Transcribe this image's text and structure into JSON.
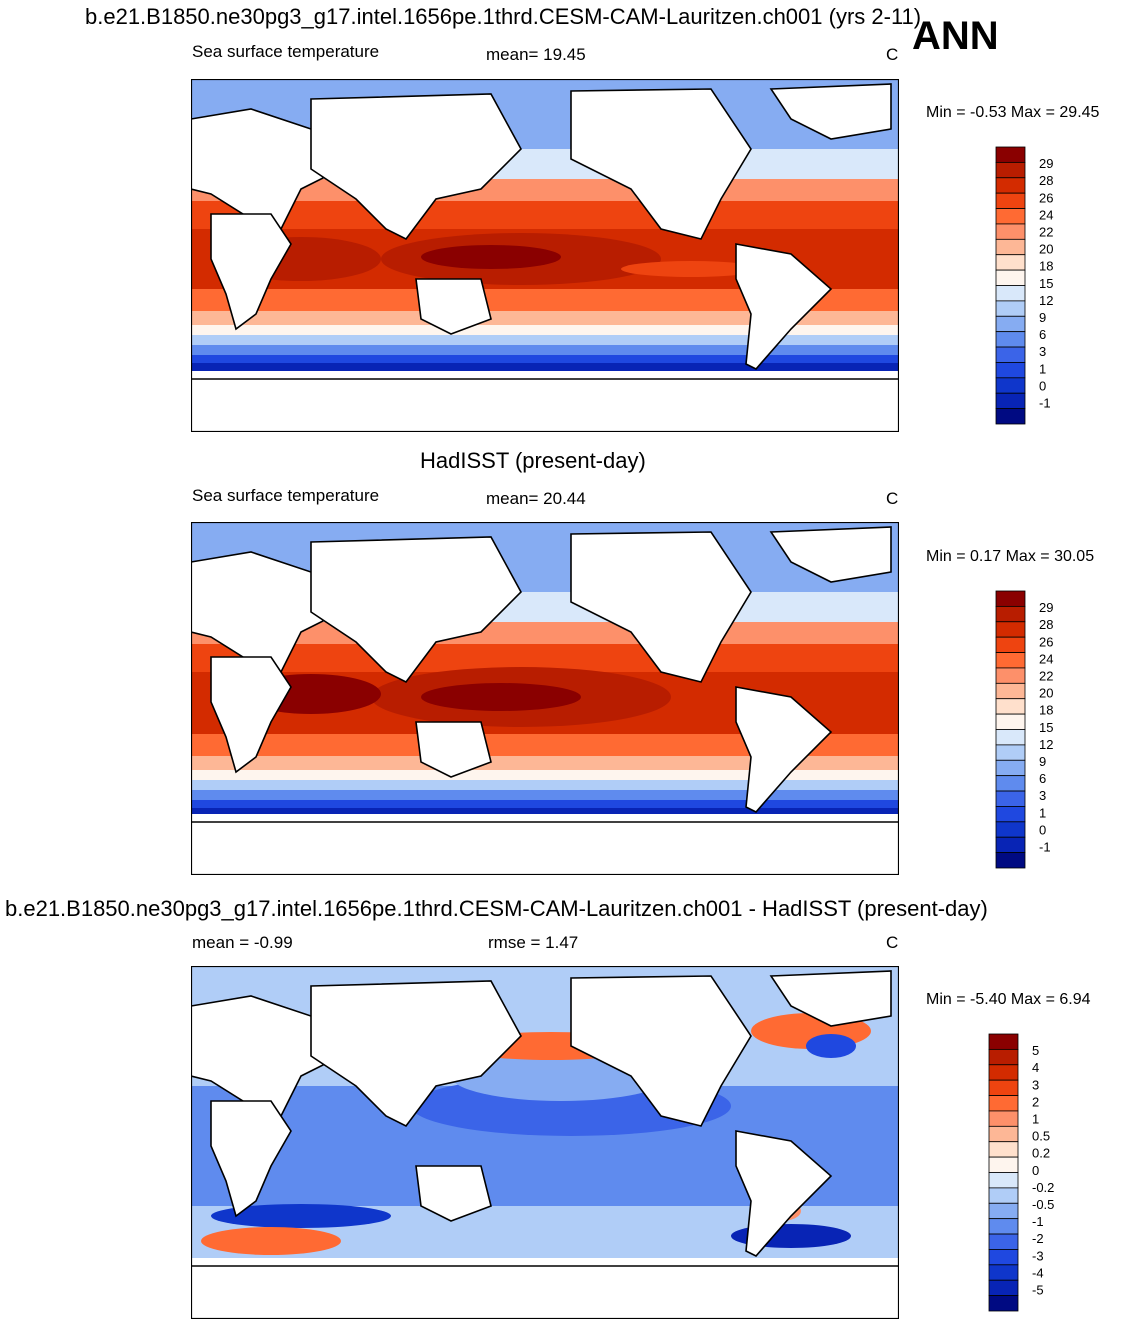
{
  "page": {
    "main_title": "b.e21.B1850.ne30pg3_g17.intel.1656pe.1thrd.CESM-CAM-Lauritzen.ch001 (yrs 2-11)",
    "season": "ANN"
  },
  "panels": [
    {
      "id": "model",
      "left_label": "Sea surface temperature",
      "center_label": "mean=  19.45",
      "units": "C",
      "minmax": "Min =  -0.53 Max =  29.45",
      "colorbar": {
        "colors": [
          "#8a0000",
          "#b81d00",
          "#d32b00",
          "#ee4410",
          "#ff6a33",
          "#fd906a",
          "#fdb796",
          "#ffe0cc",
          "#fef5ee",
          "#d9e8fa",
          "#b0cdf7",
          "#86acf2",
          "#5f8bee",
          "#3b64e8",
          "#1f48e0",
          "#0f36cb",
          "#0824b5",
          "#000a82"
        ],
        "labels": [
          "29",
          "28",
          "26",
          "24",
          "22",
          "20",
          "18",
          "15",
          "12",
          "9",
          "6",
          "3",
          "1",
          "0",
          "-1"
        ]
      }
    },
    {
      "id": "obs",
      "panel_title": "HadISST (present-day)",
      "left_label": "Sea surface temperature",
      "center_label": "mean=  20.44",
      "units": "C",
      "minmax": "Min =   0.17 Max =  30.05",
      "colorbar": {
        "colors": [
          "#8a0000",
          "#b81d00",
          "#d32b00",
          "#ee4410",
          "#ff6a33",
          "#fd906a",
          "#fdb796",
          "#ffe0cc",
          "#fef5ee",
          "#d9e8fa",
          "#b0cdf7",
          "#86acf2",
          "#5f8bee",
          "#3b64e8",
          "#1f48e0",
          "#0f36cb",
          "#0824b5",
          "#000a82"
        ],
        "labels": [
          "29",
          "28",
          "26",
          "24",
          "22",
          "20",
          "18",
          "15",
          "12",
          "9",
          "6",
          "3",
          "1",
          "0",
          "-1"
        ]
      }
    },
    {
      "id": "diff",
      "panel_title": "b.e21.B1850.ne30pg3_g17.intel.1656pe.1thrd.CESM-CAM-Lauritzen.ch001 - HadISST (present-day)",
      "left_label": "mean =  -0.99",
      "center_label": "rmse =   1.47",
      "units": "C",
      "minmax": "Min =  -5.40 Max =   6.94",
      "colorbar": {
        "colors": [
          "#8a0000",
          "#b81d00",
          "#d32b00",
          "#ee4410",
          "#ff6a33",
          "#fd906a",
          "#fdb796",
          "#ffe0cc",
          "#fef5ee",
          "#d9e8fa",
          "#b0cdf7",
          "#86acf2",
          "#5f8bee",
          "#3b64e8",
          "#1f48e0",
          "#0f36cb",
          "#0824b5",
          "#000a82"
        ],
        "labels": [
          "5",
          "4",
          "3",
          "2",
          "1",
          "0.5",
          "0.2",
          "0",
          "-0.2",
          "-0.5",
          "-1",
          "-2",
          "-3",
          "-4",
          "-5"
        ]
      }
    }
  ]
}
